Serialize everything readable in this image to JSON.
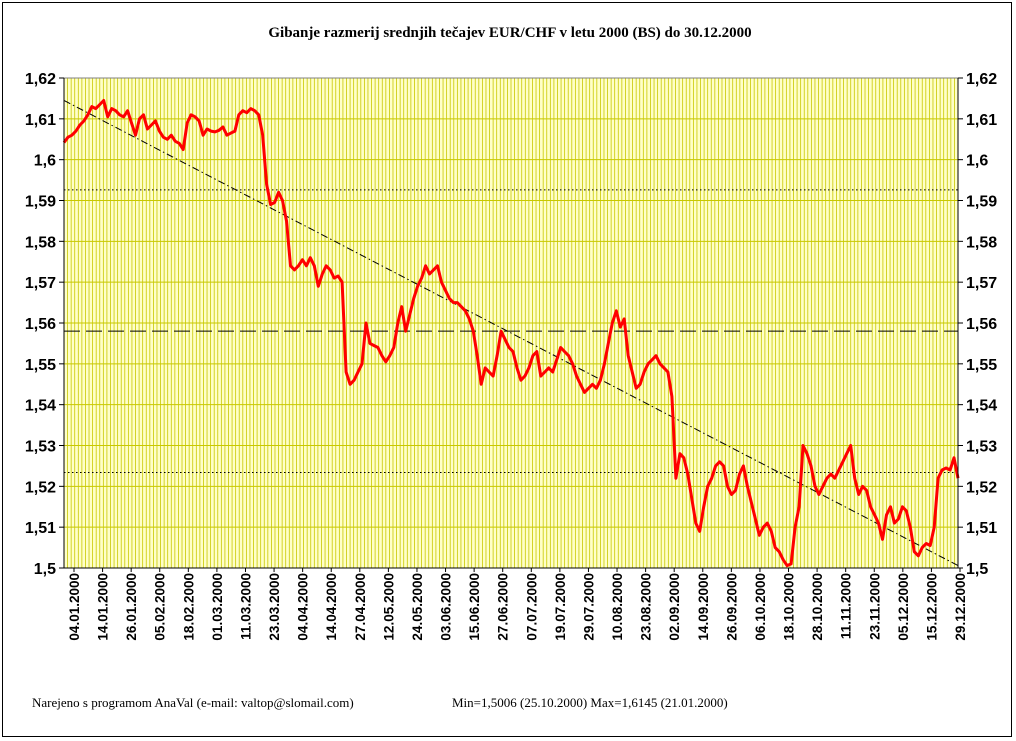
{
  "chart_data": {
    "type": "line",
    "title": "Gibanje razmerij srednjih tečajev EUR/CHF v letu 2000 (BS) do 30.12.2000",
    "ylim": [
      1.5,
      1.62
    ],
    "y_ticks": [
      "1,5",
      "1,51",
      "1,52",
      "1,53",
      "1,54",
      "1,55",
      "1,56",
      "1,57",
      "1,58",
      "1,59",
      "1,6",
      "1,61",
      "1,62"
    ],
    "x_ticks": [
      "04.01.2000",
      "14.01.2000",
      "26.01.2000",
      "05.02.2000",
      "18.02.2000",
      "01.03.2000",
      "11.03.2000",
      "23.03.2000",
      "04.04.2000",
      "14.04.2000",
      "27.04.2000",
      "12.05.2000",
      "24.05.2000",
      "03.06.2000",
      "15.06.2000",
      "27.06.2000",
      "07.07.2000",
      "19.07.2000",
      "29.07.2000",
      "10.08.2000",
      "23.08.2000",
      "02.09.2000",
      "14.09.2000",
      "26.09.2000",
      "06.10.2000",
      "18.10.2000",
      "28.10.2000",
      "11.11.2000",
      "23.11.2000",
      "05.12.2000",
      "15.12.2000",
      "29.12.2000"
    ],
    "grid": true,
    "reference_lines": [
      {
        "value": 1.5926,
        "style": "dotted"
      },
      {
        "value": 1.558,
        "style": "dashed"
      },
      {
        "value": 1.5234,
        "style": "dotted"
      }
    ],
    "trendline": {
      "start": 1.6145,
      "end": 1.5006,
      "style": "dash-dot"
    },
    "series": [
      {
        "color": "#ff0000",
        "values": [
          1.6042,
          1.6055,
          1.606,
          1.607,
          1.6085,
          1.6095,
          1.611,
          1.613,
          1.6125,
          1.6135,
          1.6145,
          1.6105,
          1.6125,
          1.612,
          1.611,
          1.6105,
          1.612,
          1.609,
          1.606,
          1.61,
          1.611,
          1.6075,
          1.6085,
          1.6095,
          1.607,
          1.6055,
          1.605,
          1.606,
          1.6045,
          1.604,
          1.6025,
          1.609,
          1.611,
          1.6105,
          1.6095,
          1.606,
          1.6075,
          1.607,
          1.6068,
          1.6072,
          1.608,
          1.606,
          1.6065,
          1.607,
          1.611,
          1.612,
          1.6115,
          1.6125,
          1.612,
          1.611,
          1.606,
          1.594,
          1.589,
          1.5895,
          1.592,
          1.59,
          1.585,
          1.574,
          1.573,
          1.574,
          1.5755,
          1.574,
          1.576,
          1.574,
          1.569,
          1.572,
          1.574,
          1.573,
          1.571,
          1.5715,
          1.57,
          1.548,
          1.545,
          1.546,
          1.548,
          1.55,
          1.56,
          1.555,
          1.5545,
          1.554,
          1.552,
          1.5505,
          1.552,
          1.554,
          1.56,
          1.564,
          1.558,
          1.562,
          1.566,
          1.569,
          1.571,
          1.574,
          1.572,
          1.573,
          1.574,
          1.57,
          1.568,
          1.566,
          1.565,
          1.565,
          1.564,
          1.563,
          1.561,
          1.558,
          1.552,
          1.545,
          1.549,
          1.548,
          1.547,
          1.552,
          1.558,
          1.556,
          1.554,
          1.553,
          1.549,
          1.546,
          1.547,
          1.549,
          1.552,
          1.553,
          1.547,
          1.548,
          1.549,
          1.548,
          1.551,
          1.554,
          1.553,
          1.552,
          1.55,
          1.547,
          1.545,
          1.543,
          1.544,
          1.545,
          1.544,
          1.546,
          1.55,
          1.555,
          1.56,
          1.563,
          1.559,
          1.561,
          1.552,
          1.548,
          1.544,
          1.545,
          1.548,
          1.55,
          1.551,
          1.552,
          1.55,
          1.549,
          1.548,
          1.542,
          1.522,
          1.528,
          1.527,
          1.523,
          1.517,
          1.511,
          1.509,
          1.515,
          1.52,
          1.522,
          1.525,
          1.526,
          1.525,
          1.52,
          1.518,
          1.519,
          1.523,
          1.525,
          1.52,
          1.516,
          1.512,
          1.508,
          1.51,
          1.511,
          1.509,
          1.505,
          1.504,
          1.502,
          1.5006,
          1.501,
          1.51,
          1.515,
          1.53,
          1.528,
          1.525,
          1.52,
          1.518,
          1.52,
          1.522,
          1.523,
          1.522,
          1.524,
          1.526,
          1.528,
          1.53,
          1.522,
          1.518,
          1.52,
          1.519,
          1.515,
          1.513,
          1.511,
          1.507,
          1.513,
          1.515,
          1.511,
          1.512,
          1.515,
          1.514,
          1.51,
          1.504,
          1.503,
          1.505,
          1.506,
          1.5055,
          1.51,
          1.522,
          1.524,
          1.5245,
          1.524,
          1.527,
          1.522
        ]
      }
    ],
    "footer": {
      "credit": "Narejeno s programom AnaVal (e-mail: valtop@slomail.com)",
      "stats": "Min=1,5006 (25.10.2000) Max=1,6145 (21.01.2000)"
    },
    "colors": {
      "plot_background": "#ffffc8",
      "grid": "#c8c800",
      "series": "#ff0000"
    }
  }
}
